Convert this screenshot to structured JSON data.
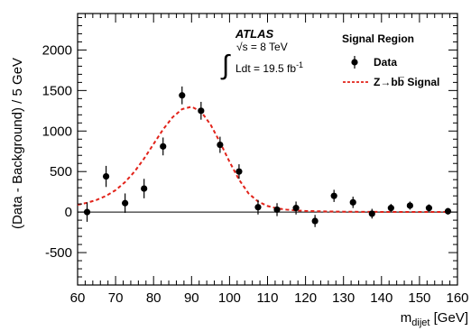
{
  "chart_data": {
    "type": "scatter",
    "title": "",
    "xlabel": {
      "main": "m",
      "sub": "dijet",
      "unit": " [GeV]"
    },
    "ylabel": "(Data - Background) / 5 GeV",
    "xlim": [
      60,
      160
    ],
    "ylim": [
      -900,
      2450
    ],
    "x_ticks": [
      60,
      70,
      80,
      90,
      100,
      110,
      120,
      130,
      140,
      150,
      160
    ],
    "y_ticks": [
      -500,
      0,
      500,
      1000,
      1500,
      2000
    ],
    "grid": false,
    "legend": {
      "placement": "top-right",
      "title": "Signal Region",
      "entries": [
        "Data",
        "Z→bb̅ Signal"
      ]
    },
    "annotations": {
      "experiment": "ATLAS",
      "energy": "√s = 8 TeV",
      "luminosity_prefix": "∫",
      "luminosity": "Ldt = 19.5 fb",
      "luminosity_exp": "-1"
    },
    "series": [
      {
        "name": "Data",
        "style": "markers-with-errorbars",
        "color": "#000000",
        "x": [
          62.5,
          67.5,
          72.5,
          77.5,
          82.5,
          87.5,
          92.5,
          97.5,
          102.5,
          107.5,
          112.5,
          117.5,
          122.5,
          127.5,
          132.5,
          137.5,
          142.5,
          147.5,
          152.5,
          157.5
        ],
        "y": [
          0,
          440,
          110,
          290,
          810,
          1440,
          1250,
          830,
          500,
          60,
          30,
          50,
          -110,
          200,
          120,
          -20,
          50,
          80,
          50,
          10
        ],
        "yerr": [
          120,
          130,
          120,
          120,
          110,
          110,
          110,
          100,
          90,
          90,
          80,
          80,
          75,
          75,
          70,
          60,
          50,
          50,
          45,
          40
        ]
      },
      {
        "name": "Z→bb̅ Signal",
        "style": "dashed-line",
        "color": "#e2231a",
        "x": [
          60,
          62.5,
          65,
          67.5,
          70,
          72.5,
          75,
          77.5,
          80,
          82.5,
          85,
          87.5,
          90,
          92.5,
          95,
          97.5,
          100,
          102.5,
          105,
          107.5,
          110,
          112.5,
          115,
          117.5,
          120,
          125,
          130,
          135,
          140,
          145,
          150,
          155,
          158
        ],
        "y": [
          90,
          115,
          150,
          200,
          270,
          370,
          500,
          660,
          840,
          1020,
          1170,
          1270,
          1300,
          1240,
          1080,
          860,
          620,
          400,
          230,
          130,
          75,
          45,
          30,
          20,
          14,
          8,
          5,
          3,
          2,
          2,
          1,
          1,
          1
        ]
      }
    ]
  }
}
